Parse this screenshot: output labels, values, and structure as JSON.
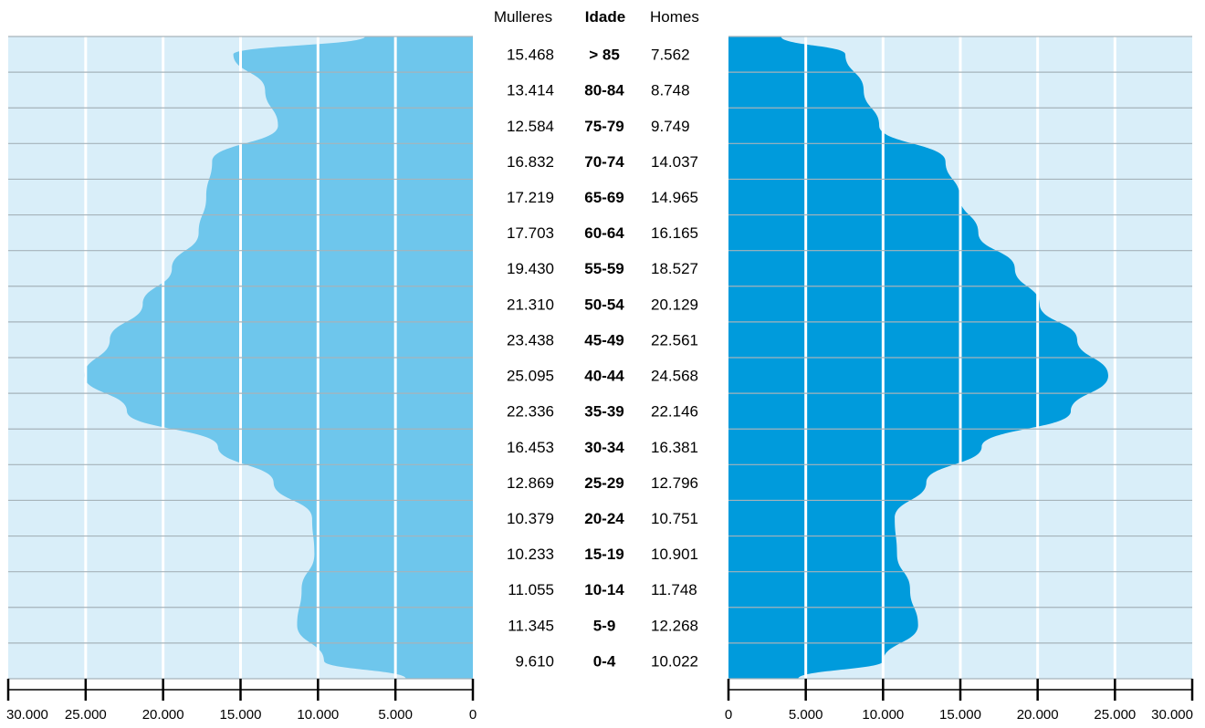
{
  "chart_data": {
    "type": "bar",
    "subtype": "population-pyramid",
    "headers": {
      "left": "Mulleres",
      "center": "Idade",
      "right": "Homes"
    },
    "categories": [
      ">  85",
      "80-84",
      "75-79",
      "70-74",
      "65-69",
      "60-64",
      "55-59",
      "50-54",
      "45-49",
      "40-44",
      "35-39",
      "30-34",
      "25-29",
      "20-24",
      "15-19",
      "10-14",
      "5-9",
      "0-4"
    ],
    "series": [
      {
        "name": "Mulleres",
        "side": "left",
        "color": "#6ec6ec",
        "values": [
          15468,
          13414,
          12584,
          16832,
          17219,
          17703,
          19430,
          21310,
          23438,
          25095,
          22336,
          16453,
          12869,
          10379,
          10233,
          11055,
          11345,
          9610
        ],
        "labels": [
          "15.468",
          "13.414",
          "12.584",
          "16.832",
          "17.219",
          "17.703",
          "19.430",
          "21.310",
          "23.438",
          "25.095",
          "22.336",
          "16.453",
          "12.869",
          "10.379",
          "10.233",
          "11.055",
          "11.345",
          "9.610"
        ]
      },
      {
        "name": "Homes",
        "side": "right",
        "color": "#009bdc",
        "values": [
          7562,
          8748,
          9749,
          14037,
          14965,
          16165,
          18527,
          20129,
          22561,
          24568,
          22146,
          16381,
          12796,
          10751,
          10901,
          11748,
          12268,
          10022
        ],
        "labels": [
          "7.562",
          "8.748",
          "9.749",
          "14.037",
          "14.965",
          "16.165",
          "18.527",
          "20.129",
          "22.561",
          "24.568",
          "22.146",
          "16.381",
          "12.796",
          "10.751",
          "10.901",
          "11.748",
          "12.268",
          "10.022"
        ]
      }
    ],
    "xlim": [
      0,
      30000
    ],
    "x_ticks": [
      0,
      5000,
      10000,
      15000,
      20000,
      25000,
      30000
    ],
    "x_tick_labels": [
      "0",
      "5.000",
      "10.000",
      "15.000",
      "20.000",
      "25.000",
      "30.000"
    ],
    "grid": true,
    "background_color": "#d9eef9"
  }
}
